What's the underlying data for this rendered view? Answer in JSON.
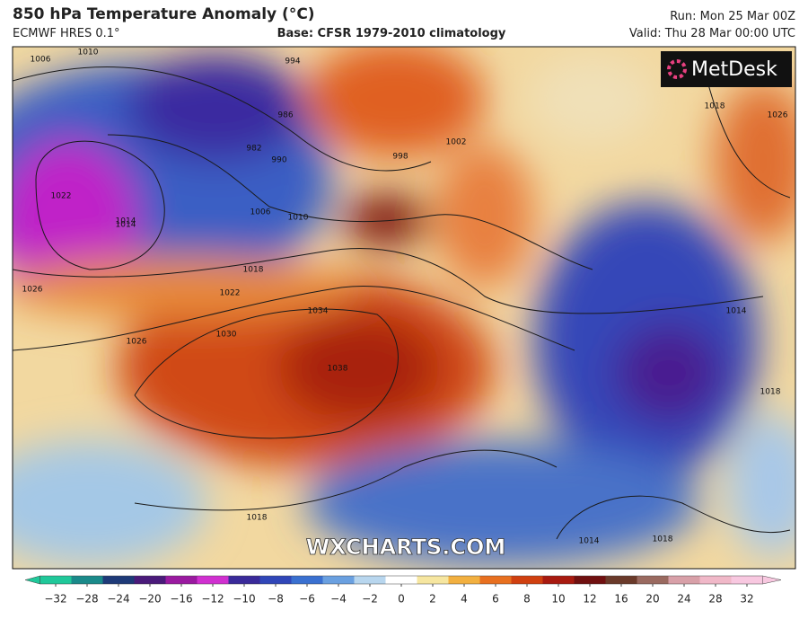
{
  "header": {
    "title": "850 hPa Temperature Anomaly (°C)",
    "model": "ECMWF HRES 0.1°",
    "base": "Base: CFSR 1979-2010 climatology",
    "run": "Run: Mon 25 Mar 00Z",
    "valid": "Valid: Thu 28 Mar 00:00 UTC"
  },
  "map": {
    "logo": "MetDesk",
    "watermark": "WXCHARTS.COM",
    "isobar_labels": [
      "1006",
      "1010",
      "994",
      "986",
      "982",
      "990",
      "998",
      "1002",
      "1006",
      "1010",
      "1014",
      "1022",
      "1018",
      "1022",
      "1026",
      "1026",
      "1030",
      "1034",
      "1038",
      "1014",
      "1018",
      "1014",
      "1018",
      "1018",
      "1014",
      "1018",
      "1026"
    ]
  },
  "colorbar": {
    "ticks": [
      {
        "value": -32,
        "label": "−32",
        "color": "#20c89a"
      },
      {
        "value": -28,
        "label": "−28",
        "color": "#1a8a8a"
      },
      {
        "value": -24,
        "label": "−24",
        "color": "#1e3a78"
      },
      {
        "value": -20,
        "label": "−20",
        "color": "#4a1a7a"
      },
      {
        "value": -16,
        "label": "−16",
        "color": "#9a1aa0"
      },
      {
        "value": -12,
        "label": "−12",
        "color": "#d030d0"
      },
      {
        "value": -10,
        "label": "−10",
        "color": "#3a2a9a"
      },
      {
        "value": -8,
        "label": "−8",
        "color": "#3046b8"
      },
      {
        "value": -6,
        "label": "−6",
        "color": "#3a70d0"
      },
      {
        "value": -4,
        "label": "−4",
        "color": "#6aa0e0"
      },
      {
        "value": -2,
        "label": "−2",
        "color": "#b8d6ee"
      },
      {
        "value": 0,
        "label": "0",
        "color": "#ffffff"
      },
      {
        "value": 2,
        "label": "2",
        "color": "#f6e6a0"
      },
      {
        "value": 4,
        "label": "4",
        "color": "#f2b040"
      },
      {
        "value": 6,
        "label": "6",
        "color": "#e87020"
      },
      {
        "value": 8,
        "label": "8",
        "color": "#d04010"
      },
      {
        "value": 10,
        "label": "10",
        "color": "#a81a10"
      },
      {
        "value": 12,
        "label": "12",
        "color": "#701010"
      },
      {
        "value": 16,
        "label": "16",
        "color": "#6a3a2a"
      },
      {
        "value": 20,
        "label": "20",
        "color": "#9a6a60"
      },
      {
        "value": 24,
        "label": "24",
        "color": "#d8a0a8"
      },
      {
        "value": 28,
        "label": "28",
        "color": "#f0b8c8"
      },
      {
        "value": 32,
        "label": "32",
        "color": "#f8c8e0"
      }
    ]
  }
}
